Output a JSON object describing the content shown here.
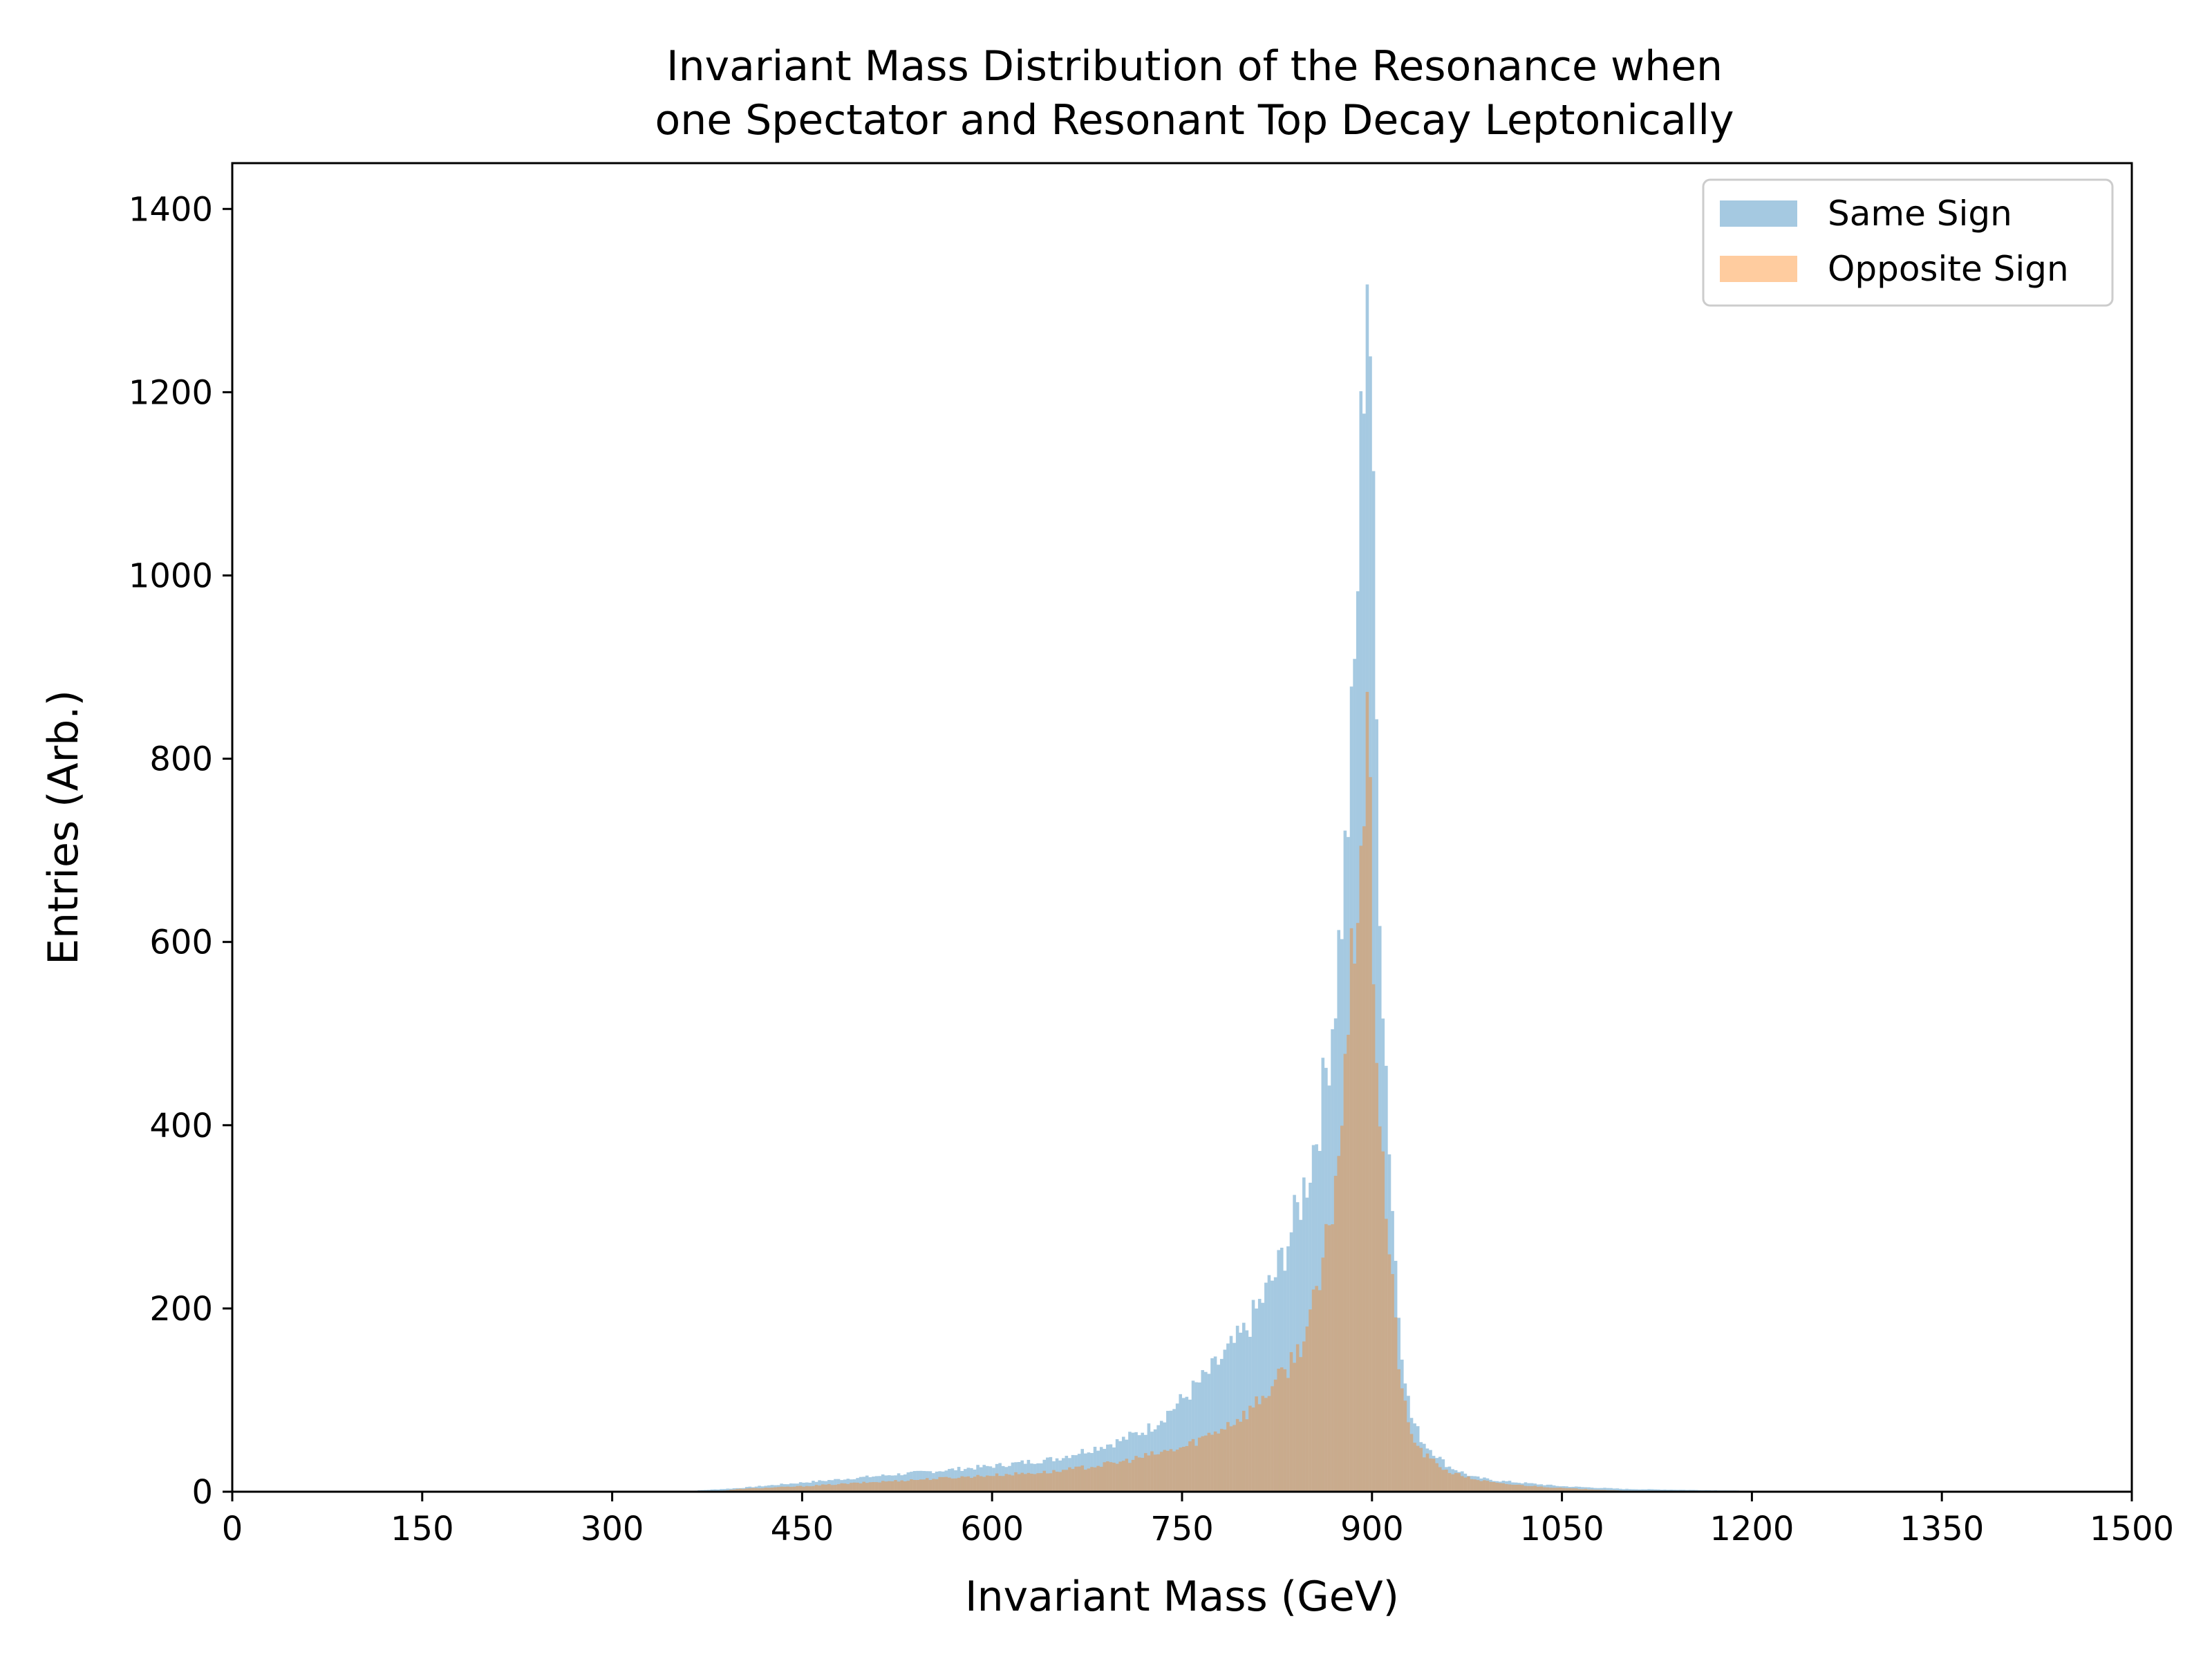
{
  "chart_data": {
    "type": "histogram",
    "title_lines": [
      "Invariant Mass Distribution of the Resonance when",
      "one Spectator and Resonant Top Decay Leptonically"
    ],
    "xlabel": "Invariant Mass (GeV)",
    "ylabel": "Entries (Arb.)",
    "xlim": [
      0,
      1500
    ],
    "ylim": [
      0,
      1450
    ],
    "xticks": [
      0,
      150,
      300,
      450,
      600,
      750,
      900,
      1050,
      1200,
      1350,
      1500
    ],
    "yticks": [
      0,
      200,
      400,
      600,
      800,
      1000,
      1200,
      1400
    ],
    "grid": false,
    "legend_position": "top-right",
    "bin_width": 2.5,
    "series": [
      {
        "name": "Same Sign",
        "color": "#1f77b4",
        "opacity": 0.4,
        "points": [
          [
            350,
            0
          ],
          [
            400,
            4
          ],
          [
            450,
            10
          ],
          [
            500,
            16
          ],
          [
            550,
            22
          ],
          [
            600,
            28
          ],
          [
            650,
            36
          ],
          [
            700,
            55
          ],
          [
            725,
            70
          ],
          [
            750,
            100
          ],
          [
            775,
            135
          ],
          [
            800,
            175
          ],
          [
            825,
            240
          ],
          [
            840,
            300
          ],
          [
            850,
            350
          ],
          [
            860,
            420
          ],
          [
            870,
            530
          ],
          [
            877,
            650
          ],
          [
            882,
            760
          ],
          [
            886,
            880
          ],
          [
            890,
            1060
          ],
          [
            893,
            1220
          ],
          [
            896,
            1370
          ],
          [
            899,
            1250
          ],
          [
            902,
            960
          ],
          [
            905,
            740
          ],
          [
            908,
            580
          ],
          [
            912,
            440
          ],
          [
            917,
            290
          ],
          [
            922,
            180
          ],
          [
            930,
            85
          ],
          [
            940,
            55
          ],
          [
            960,
            28
          ],
          [
            980,
            16
          ],
          [
            1000,
            12
          ],
          [
            1050,
            6
          ],
          [
            1100,
            3
          ],
          [
            1150,
            2
          ],
          [
            1200,
            1
          ],
          [
            1220,
            0
          ]
        ]
      },
      {
        "name": "Opposite Sign",
        "color": "#ff7f0e",
        "opacity": 0.4,
        "points": [
          [
            380,
            0
          ],
          [
            400,
            3
          ],
          [
            450,
            6
          ],
          [
            500,
            10
          ],
          [
            550,
            14
          ],
          [
            600,
            18
          ],
          [
            650,
            22
          ],
          [
            700,
            32
          ],
          [
            750,
            48
          ],
          [
            775,
            65
          ],
          [
            800,
            85
          ],
          [
            825,
            120
          ],
          [
            840,
            150
          ],
          [
            850,
            185
          ],
          [
            860,
            230
          ],
          [
            870,
            330
          ],
          [
            877,
            420
          ],
          [
            882,
            520
          ],
          [
            886,
            610
          ],
          [
            890,
            690
          ],
          [
            893,
            760
          ],
          [
            896,
            810
          ],
          [
            899,
            700
          ],
          [
            902,
            550
          ],
          [
            906,
            430
          ],
          [
            910,
            330
          ],
          [
            915,
            240
          ],
          [
            920,
            160
          ],
          [
            925,
            100
          ],
          [
            930,
            65
          ],
          [
            940,
            42
          ],
          [
            960,
            22
          ],
          [
            980,
            14
          ],
          [
            1000,
            9
          ],
          [
            1050,
            4
          ],
          [
            1100,
            1
          ],
          [
            1130,
            0
          ]
        ]
      }
    ]
  }
}
